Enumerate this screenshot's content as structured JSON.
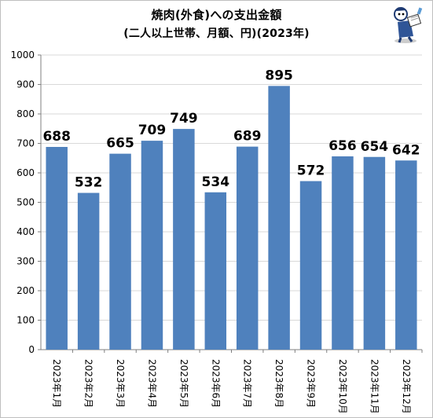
{
  "chart_data": {
    "type": "bar",
    "title": "焼肉(外食)への支出金額",
    "subtitle": "(二人以上世帯、月額、円)(2023年)",
    "categories": [
      "2023年1月",
      "2023年2月",
      "2023年3月",
      "2023年4月",
      "2023年5月",
      "2023年6月",
      "2023年7月",
      "2023年8月",
      "2023年9月",
      "2023年10月",
      "2023年11月",
      "2023年12月"
    ],
    "values": [
      688,
      532,
      665,
      709,
      749,
      534,
      689,
      895,
      572,
      656,
      654,
      642
    ],
    "ylim": [
      0,
      1000
    ],
    "yticks": [
      0,
      100,
      200,
      300,
      400,
      500,
      600,
      700,
      800,
      900,
      1000
    ],
    "grid": true,
    "legend": "none",
    "bar_color": "#4f81bd",
    "grid_color": "#d9d9d9",
    "axis_color": "#7f7f7f"
  },
  "mascot": {
    "icon": "reading-character-mascot"
  }
}
